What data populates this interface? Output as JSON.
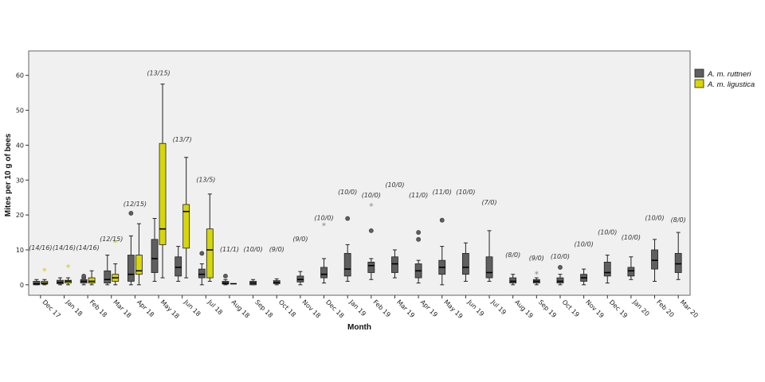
{
  "chart_data": {
    "type": "boxplot",
    "xlabel": "Month",
    "ylabel": "Mites per 10 g of bees",
    "ylim": [
      -3,
      67
    ],
    "yticks": [
      0,
      10,
      20,
      30,
      40,
      50,
      60
    ],
    "grid": false,
    "legend_position": "right",
    "colors": {
      "ruttneri": "#5f5f5f",
      "ligustica": "#d6d60a",
      "plot_bg": "#f0f0f0"
    },
    "series": [
      {
        "name": "A. m. ruttneri",
        "key": "ruttneri"
      },
      {
        "name": "A. m. ligustica",
        "key": "ligustica"
      }
    ],
    "categories": [
      "Dec 17",
      "Jan 18",
      "Feb 18",
      "Mar 18",
      "Apr 18",
      "May 18",
      "Jun 18",
      "Jul 18",
      "Aug 18",
      "Sep 18",
      "Oct 18",
      "Nov 18",
      "Dec 18",
      "Jan 19",
      "Feb 19",
      "Mar 19",
      "Apr 19",
      "May 19",
      "Jun 19",
      "Jul 19",
      "Aug 19",
      "Sep 19",
      "Oct 19",
      "Nov 19",
      "Dec 19",
      "Jan 20",
      "Feb 20",
      "Mar 20"
    ],
    "n_labels": [
      "(14/16)",
      "(14/16)",
      "(14/16)",
      "(12/15)",
      "(12/15)",
      "(13/15)",
      "(13/7)",
      "(13/5)",
      "(11/1)",
      "(10/0)",
      "(9/0)",
      "(9/0)",
      "(10/0)",
      "(10/0)",
      "(10/0)",
      "(10/0)",
      "(11/0)",
      "(11/0)",
      "(10/0)",
      "(7/0)",
      "(8/0)",
      "(9/0)",
      "(10/0)",
      "(10/0)",
      "(10/0)",
      "(10/0)",
      "(10/0)",
      "(8/0)"
    ],
    "n_label_y": [
      10,
      10,
      10,
      12.5,
      22.5,
      60,
      41,
      29.5,
      9.5,
      9.5,
      9.5,
      12.5,
      18.5,
      26,
      25,
      28,
      25,
      26,
      26,
      23,
      8,
      7,
      7.5,
      11,
      14.5,
      13,
      18.5,
      18
    ],
    "boxes": [
      {
        "month": "Dec 17",
        "ruttneri": {
          "min": 0,
          "q1": 0,
          "median": 0.3,
          "q3": 1,
          "max": 1.5,
          "outliers": [],
          "extremes": []
        },
        "ligustica": {
          "min": 0,
          "q1": 0.2,
          "median": 0.5,
          "q3": 1,
          "max": 1.5,
          "outliers": [],
          "extremes": [
            4
          ]
        }
      },
      {
        "month": "Jan 18",
        "ruttneri": {
          "min": 0,
          "q1": 0.3,
          "median": 0.7,
          "q3": 1.3,
          "max": 2,
          "outliers": [],
          "extremes": []
        },
        "ligustica": {
          "min": 0,
          "q1": 0.5,
          "median": 1,
          "q3": 1.3,
          "max": 2,
          "outliers": [],
          "extremes": [
            5
          ]
        }
      },
      {
        "month": "Feb 18",
        "ruttneri": {
          "min": 0,
          "q1": 0.5,
          "median": 1,
          "q3": 1.5,
          "max": 2,
          "outliers": [
            2,
            2.5
          ],
          "extremes": []
        },
        "ligustica": {
          "min": 0,
          "q1": 0.5,
          "median": 1,
          "q3": 2,
          "max": 4,
          "outliers": [],
          "extremes": []
        }
      },
      {
        "month": "Mar 18",
        "ruttneri": {
          "min": 0,
          "q1": 0.5,
          "median": 1.5,
          "q3": 4,
          "max": 8.5,
          "outliers": [],
          "extremes": []
        },
        "ligustica": {
          "min": 0,
          "q1": 1,
          "median": 2,
          "q3": 3,
          "max": 6,
          "outliers": [],
          "extremes": [
            12
          ]
        }
      },
      {
        "month": "Apr 18",
        "ruttneri": {
          "min": 0,
          "q1": 1,
          "median": 3,
          "q3": 8.5,
          "max": 14,
          "outliers": [
            20.5
          ],
          "extremes": []
        },
        "ligustica": {
          "min": 0,
          "q1": 3,
          "median": 4,
          "q3": 8.5,
          "max": 17.5,
          "outliers": [],
          "extremes": []
        }
      },
      {
        "month": "May 18",
        "ruttneri": {
          "min": 1,
          "q1": 3.5,
          "median": 7.5,
          "q3": 13,
          "max": 19,
          "outliers": [],
          "extremes": []
        },
        "ligustica": {
          "min": 2,
          "q1": 11.5,
          "median": 16,
          "q3": 40.5,
          "max": 57.5,
          "outliers": [],
          "extremes": []
        }
      },
      {
        "month": "Jun 18",
        "ruttneri": {
          "min": 1,
          "q1": 2.5,
          "median": 5,
          "q3": 8,
          "max": 11,
          "outliers": [],
          "extremes": []
        },
        "ligustica": {
          "min": 2,
          "q1": 10.5,
          "median": 21,
          "q3": 23,
          "max": 36.5,
          "outliers": [],
          "extremes": []
        }
      },
      {
        "month": "Jul 18",
        "ruttneri": {
          "min": 0,
          "q1": 2,
          "median": 3,
          "q3": 4.5,
          "max": 6,
          "outliers": [
            9
          ],
          "extremes": []
        },
        "ligustica": {
          "min": 1,
          "q1": 2,
          "median": 10,
          "q3": 16,
          "max": 26,
          "outliers": [],
          "extremes": []
        }
      },
      {
        "month": "Aug 18",
        "ruttneri": {
          "min": 0,
          "q1": 0.2,
          "median": 0.5,
          "q3": 1,
          "max": 1.5,
          "outliers": [
            2.5
          ],
          "extremes": []
        },
        "ligustica": {
          "median": 0.3
        }
      },
      {
        "month": "Sep 18",
        "ruttneri": {
          "min": 0,
          "q1": 0,
          "median": 0.5,
          "q3": 1,
          "max": 1.5,
          "outliers": [],
          "extremes": []
        }
      },
      {
        "month": "Oct 18",
        "ruttneri": {
          "min": 0,
          "q1": 0.3,
          "median": 0.7,
          "q3": 1.2,
          "max": 1.7,
          "outliers": [],
          "extremes": []
        }
      },
      {
        "month": "Nov 18",
        "ruttneri": {
          "min": 0,
          "q1": 0.8,
          "median": 1.5,
          "q3": 2.5,
          "max": 3.8,
          "outliers": [],
          "extremes": []
        }
      },
      {
        "month": "Dec 18",
        "ruttneri": {
          "min": 0.5,
          "q1": 2,
          "median": 3,
          "q3": 5,
          "max": 7.5,
          "outliers": [],
          "extremes": [
            17
          ]
        }
      },
      {
        "month": "Jan 19",
        "ruttneri": {
          "min": 1,
          "q1": 2.5,
          "median": 4.5,
          "q3": 9,
          "max": 11.5,
          "outliers": [
            19
          ],
          "extremes": []
        }
      },
      {
        "month": "Feb 19",
        "ruttneri": {
          "min": 1.5,
          "q1": 3.5,
          "median": 5.5,
          "q3": 6.5,
          "max": 7.5,
          "outliers": [
            15.5
          ],
          "extremes": [
            22.5
          ]
        }
      },
      {
        "month": "Mar 19",
        "ruttneri": {
          "min": 2,
          "q1": 3.5,
          "median": 6,
          "q3": 8,
          "max": 10,
          "outliers": [],
          "extremes": []
        }
      },
      {
        "month": "Apr 19",
        "ruttneri": {
          "min": 0.5,
          "q1": 2,
          "median": 4,
          "q3": 6,
          "max": 7,
          "outliers": [
            13,
            15
          ],
          "extremes": []
        }
      },
      {
        "month": "May 19",
        "ruttneri": {
          "min": 0,
          "q1": 3,
          "median": 5,
          "q3": 7,
          "max": 11,
          "outliers": [
            18.5
          ],
          "extremes": []
        }
      },
      {
        "month": "Jun 19",
        "ruttneri": {
          "min": 1,
          "q1": 3,
          "median": 5,
          "q3": 9,
          "max": 12,
          "outliers": [],
          "extremes": []
        }
      },
      {
        "month": "Jul 19",
        "ruttneri": {
          "min": 1,
          "q1": 2,
          "median": 3.5,
          "q3": 8,
          "max": 15.5,
          "outliers": [],
          "extremes": []
        }
      },
      {
        "month": "Aug 19",
        "ruttneri": {
          "min": 0,
          "q1": 0.5,
          "median": 1,
          "q3": 2,
          "max": 3,
          "outliers": [],
          "extremes": []
        }
      },
      {
        "month": "Sep 19",
        "ruttneri": {
          "min": 0,
          "q1": 0.5,
          "median": 1,
          "q3": 1.5,
          "max": 2,
          "outliers": [],
          "extremes": [
            3
          ]
        }
      },
      {
        "month": "Oct 19",
        "ruttneri": {
          "min": 0,
          "q1": 0.5,
          "median": 1,
          "q3": 2,
          "max": 3,
          "outliers": [
            5
          ],
          "extremes": []
        }
      },
      {
        "month": "Nov 19",
        "ruttneri": {
          "min": 0,
          "q1": 1,
          "median": 2,
          "q3": 3,
          "max": 4.5,
          "outliers": [],
          "extremes": []
        }
      },
      {
        "month": "Dec 19",
        "ruttneri": {
          "min": 0.5,
          "q1": 2.5,
          "median": 3.5,
          "q3": 6.5,
          "max": 8.5,
          "outliers": [],
          "extremes": []
        }
      },
      {
        "month": "Jan 20",
        "ruttneri": {
          "min": 1.5,
          "q1": 2.5,
          "median": 4,
          "q3": 5,
          "max": 8,
          "outliers": [],
          "extremes": []
        }
      },
      {
        "month": "Feb 20",
        "ruttneri": {
          "min": 1,
          "q1": 4.5,
          "median": 7,
          "q3": 10,
          "max": 13,
          "outliers": [],
          "extremes": []
        }
      },
      {
        "month": "Mar 20",
        "ruttneri": {
          "min": 1.5,
          "q1": 3.5,
          "median": 6,
          "q3": 9,
          "max": 15,
          "outliers": [],
          "extremes": []
        }
      }
    ]
  }
}
